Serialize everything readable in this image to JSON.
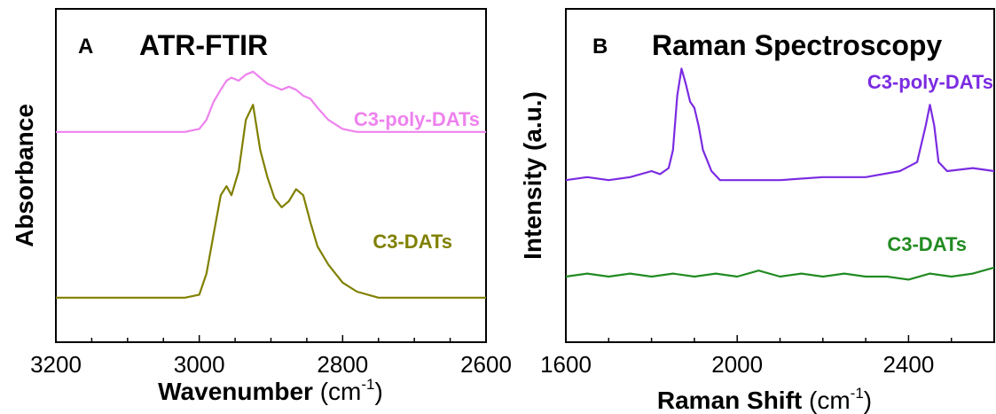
{
  "chart_data": [
    {
      "type": "line",
      "panel": "A",
      "title": "ATR-FTIR",
      "xlabel": "Wavenumber (cm-1)",
      "xlabel_main": "Wavenumber",
      "xlabel_unit_open": "(cm",
      "xlabel_unit_sup": "-1",
      "xlabel_unit_close": ")",
      "ylabel": "Absorbance",
      "xlim": [
        3200,
        2600
      ],
      "ylim": [
        0,
        1
      ],
      "x_reversed": true,
      "yticks_shown": false,
      "xticks": [
        3200,
        3000,
        2800,
        2600
      ],
      "xtick_labels": [
        "3200",
        "3000",
        "2800",
        "2600"
      ],
      "series": [
        {
          "name": "C3-poly-DATs",
          "color": "#EE82EE",
          "x": [
            3200,
            3150,
            3100,
            3050,
            3020,
            3000,
            2990,
            2980,
            2970,
            2962,
            2955,
            2945,
            2935,
            2925,
            2915,
            2905,
            2895,
            2885,
            2875,
            2865,
            2855,
            2845,
            2835,
            2820,
            2800,
            2780,
            2750,
            2700,
            2650,
            2600
          ],
          "y": [
            0.68,
            0.68,
            0.68,
            0.68,
            0.68,
            0.69,
            0.72,
            0.78,
            0.82,
            0.85,
            0.86,
            0.85,
            0.87,
            0.88,
            0.86,
            0.84,
            0.83,
            0.82,
            0.83,
            0.82,
            0.8,
            0.79,
            0.76,
            0.72,
            0.69,
            0.68,
            0.68,
            0.68,
            0.68,
            0.68
          ]
        },
        {
          "name": "C3-DATs",
          "color": "#808000",
          "x": [
            3200,
            3150,
            3100,
            3050,
            3020,
            3000,
            2990,
            2980,
            2970,
            2962,
            2955,
            2945,
            2935,
            2925,
            2915,
            2905,
            2895,
            2885,
            2875,
            2865,
            2855,
            2845,
            2835,
            2820,
            2800,
            2780,
            2750,
            2700,
            2650,
            2600
          ],
          "y": [
            0.13,
            0.13,
            0.13,
            0.13,
            0.13,
            0.14,
            0.21,
            0.34,
            0.47,
            0.5,
            0.47,
            0.55,
            0.72,
            0.77,
            0.62,
            0.53,
            0.46,
            0.43,
            0.45,
            0.49,
            0.47,
            0.38,
            0.3,
            0.24,
            0.18,
            0.15,
            0.13,
            0.13,
            0.13,
            0.13
          ]
        }
      ]
    },
    {
      "type": "line",
      "panel": "B",
      "title": "Raman Spectroscopy",
      "xlabel": "Raman Shift (cm-1)",
      "xlabel_main": "Raman Shift",
      "xlabel_unit_open": "(cm",
      "xlabel_unit_sup": "-1",
      "xlabel_unit_close": ")",
      "ylabel": "Intensity (a.u.)",
      "xlim": [
        1600,
        2600
      ],
      "ylim": [
        0,
        1
      ],
      "yticks_shown": false,
      "xticks": [
        1600,
        2000,
        2400
      ],
      "xtick_labels": [
        "1600",
        "2000",
        "2400"
      ],
      "series": [
        {
          "name": "C3-poly-DATs",
          "color": "#7B2BE2",
          "x": [
            1600,
            1650,
            1700,
            1750,
            1800,
            1820,
            1840,
            1850,
            1860,
            1870,
            1880,
            1890,
            1900,
            1910,
            1920,
            1940,
            1960,
            2000,
            2100,
            2200,
            2300,
            2380,
            2420,
            2440,
            2450,
            2460,
            2470,
            2490,
            2550,
            2600
          ],
          "y": [
            0.52,
            0.53,
            0.52,
            0.53,
            0.55,
            0.54,
            0.56,
            0.62,
            0.8,
            0.89,
            0.84,
            0.78,
            0.76,
            0.7,
            0.62,
            0.55,
            0.52,
            0.52,
            0.52,
            0.53,
            0.53,
            0.55,
            0.58,
            0.7,
            0.77,
            0.7,
            0.58,
            0.55,
            0.56,
            0.55
          ]
        },
        {
          "name": "C3-DATs",
          "color": "#228B22",
          "x": [
            1600,
            1650,
            1700,
            1750,
            1800,
            1850,
            1900,
            1950,
            2000,
            2050,
            2100,
            2150,
            2200,
            2250,
            2300,
            2350,
            2400,
            2450,
            2500,
            2550,
            2600
          ],
          "y": [
            0.2,
            0.21,
            0.2,
            0.21,
            0.2,
            0.21,
            0.2,
            0.21,
            0.2,
            0.22,
            0.2,
            0.21,
            0.2,
            0.21,
            0.2,
            0.2,
            0.19,
            0.21,
            0.2,
            0.21,
            0.23
          ]
        }
      ]
    }
  ]
}
